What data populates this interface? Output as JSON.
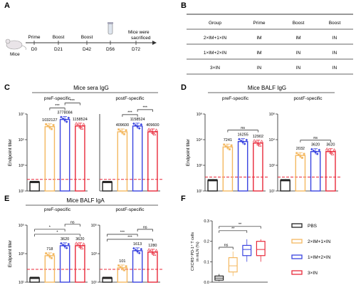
{
  "panels": {
    "A": {
      "letter": "A",
      "mouse_label": "Mice",
      "timeline": [
        {
          "event": "Prime",
          "day": "D0"
        },
        {
          "event": "Boost",
          "day": "D21"
        },
        {
          "event": "Boost",
          "day": "D42"
        },
        {
          "event": "",
          "day": "D56"
        },
        {
          "event": "",
          "day": "D72"
        }
      ],
      "sacrifice_label_1": "Mice were",
      "sacrifice_label_2": "sacrificed"
    },
    "B": {
      "letter": "B",
      "headers": [
        "Group",
        "Prime",
        "Boost",
        "Boost"
      ],
      "rows": [
        [
          "2×IM+1×IN",
          "IM",
          "IM",
          "IN"
        ],
        [
          "1×IM+2×IN",
          "IM",
          "IN",
          "IN"
        ],
        [
          "3×IN",
          "IN",
          "IN",
          "IN"
        ]
      ]
    },
    "C": {
      "letter": "C",
      "title": "Mice sera IgG"
    },
    "D": {
      "letter": "D",
      "title": "Mice BALF IgG"
    },
    "E": {
      "letter": "E",
      "title": "Mice BALF IgA"
    },
    "F": {
      "letter": "F"
    }
  },
  "legend": [
    {
      "label": "PBS",
      "color": "#222222"
    },
    {
      "label": "2×IM+1×IN",
      "color": "#f4b860"
    },
    {
      "label": "1×IM+2×IN",
      "color": "#3a44e0"
    },
    {
      "label": "3×IN",
      "color": "#e8293a"
    }
  ],
  "chart_data": [
    {
      "panel": "C",
      "subtitle": "preF-specific",
      "type": "bar",
      "scale": "log",
      "ylabel": "Endpoint titer",
      "ylim_exp": [
        1,
        7
      ],
      "yticks": [
        "10¹",
        "10³",
        "10⁵",
        "10⁷"
      ],
      "categories": [
        "PBS",
        "2×IM+1×IN",
        "1×IM+2×IN",
        "3×IN"
      ],
      "values": [
        50,
        1032127,
        3778084,
        1158524
      ],
      "value_labels": [
        "",
        "1032127",
        "3778084",
        "1158524"
      ],
      "sig": [
        {
          "a": 1,
          "b": 2,
          "label": "***"
        },
        {
          "a": 2,
          "b": 3,
          "label": "***"
        }
      ]
    },
    {
      "panel": "C",
      "subtitle": "postF-specific",
      "type": "bar",
      "scale": "log",
      "ylim_exp": [
        1,
        7
      ],
      "categories": [
        "PBS",
        "2×IM+1×IN",
        "1×IM+2×IN",
        "3×IN"
      ],
      "values": [
        50,
        409600,
        1158524,
        409600
      ],
      "value_labels": [
        "",
        "409600",
        "1158524",
        "409600"
      ],
      "sig": [
        {
          "a": 1,
          "b": 2,
          "label": "***"
        },
        {
          "a": 2,
          "b": 3,
          "label": "***"
        }
      ]
    },
    {
      "panel": "D",
      "subtitle": "preF-specific",
      "type": "bar",
      "scale": "log",
      "ylabel": "Endpoint titer",
      "ylim_exp": [
        1,
        6
      ],
      "yticks": [
        "10¹",
        "10²",
        "10⁴",
        "10⁶"
      ],
      "categories": [
        "PBS",
        "2×IM+1×IN",
        "1×IM+2×IN",
        "3×IN"
      ],
      "values": [
        50,
        7241,
        16255,
        12902
      ],
      "value_labels": [
        "",
        "7241",
        "16255",
        "12902"
      ],
      "sig": [
        {
          "a": 1,
          "b": 3,
          "label": "ns"
        }
      ]
    },
    {
      "panel": "D",
      "subtitle": "postF-specific",
      "type": "bar",
      "scale": "log",
      "ylim_exp": [
        1,
        6
      ],
      "yticks": [
        "10¹",
        "10²",
        "10⁴",
        "10⁶"
      ],
      "categories": [
        "PBS",
        "2×IM+1×IN",
        "1×IM+2×IN",
        "3×IN"
      ],
      "values": [
        50,
        2032,
        3620,
        3620
      ],
      "value_labels": [
        "",
        "2032",
        "3620",
        "3620"
      ],
      "sig": [
        {
          "a": 1,
          "b": 3,
          "label": "ns"
        }
      ]
    },
    {
      "panel": "E",
      "subtitle": "preF-specific",
      "type": "bar",
      "scale": "log",
      "ylabel": "Endpoint titer",
      "ylim_exp": [
        1,
        5
      ],
      "yticks": [
        "10¹",
        "10³",
        "10⁵"
      ],
      "categories": [
        "PBS",
        "2×IM+1×IN",
        "1×IM+2×IN",
        "3×IN"
      ],
      "values": [
        20,
        718,
        3620,
        3620
      ],
      "value_labels": [
        "",
        "718",
        "3620",
        "3620"
      ],
      "sig": [
        {
          "a": 0,
          "b": 3,
          "label": "*"
        },
        {
          "a": 0,
          "b": 2,
          "label": "*"
        },
        {
          "a": 2,
          "b": 3,
          "label": "ns"
        }
      ]
    },
    {
      "panel": "E",
      "subtitle": "postF-specific",
      "type": "bar",
      "scale": "log",
      "ylim_exp": [
        1,
        5
      ],
      "yticks": [
        "10¹",
        "10³",
        "10⁵"
      ],
      "categories": [
        "PBS",
        "2×IM+1×IN",
        "1×IM+2×IN",
        "3×IN"
      ],
      "values": [
        20,
        101,
        1613,
        1280
      ],
      "value_labels": [
        "",
        "101",
        "1613",
        "1280"
      ],
      "sig": [
        {
          "a": 0,
          "b": 3,
          "label": "***"
        },
        {
          "a": 0,
          "b": 2,
          "label": "***"
        },
        {
          "a": 2,
          "b": 3,
          "label": "ns"
        }
      ]
    },
    {
      "panel": "F",
      "type": "box",
      "ylabel_line1": "CXCR5⁺PD-1⁺ T cells",
      "ylabel_line2": "in mLN (%)",
      "ylim": [
        0.0,
        0.3
      ],
      "yticks": [
        "0.0",
        "0.1",
        "0.2",
        "0.3"
      ],
      "categories": [
        "PBS",
        "2×IM+1×IN",
        "1×IM+2×IN",
        "3×IN"
      ],
      "boxes": [
        {
          "min": 0.005,
          "q1": 0.01,
          "median": 0.02,
          "q3": 0.03,
          "max": 0.04
        },
        {
          "min": 0.03,
          "q1": 0.05,
          "median": 0.08,
          "q3": 0.12,
          "max": 0.15
        },
        {
          "min": 0.1,
          "q1": 0.13,
          "median": 0.16,
          "q3": 0.18,
          "max": 0.21
        },
        {
          "min": 0.1,
          "q1": 0.13,
          "median": 0.16,
          "q3": 0.2,
          "max": 0.21
        }
      ],
      "sig": [
        {
          "a": 0,
          "b": 1,
          "label": "ns"
        },
        {
          "a": 0,
          "b": 2,
          "label": "**"
        },
        {
          "a": 0,
          "b": 3,
          "label": "**"
        }
      ]
    }
  ]
}
